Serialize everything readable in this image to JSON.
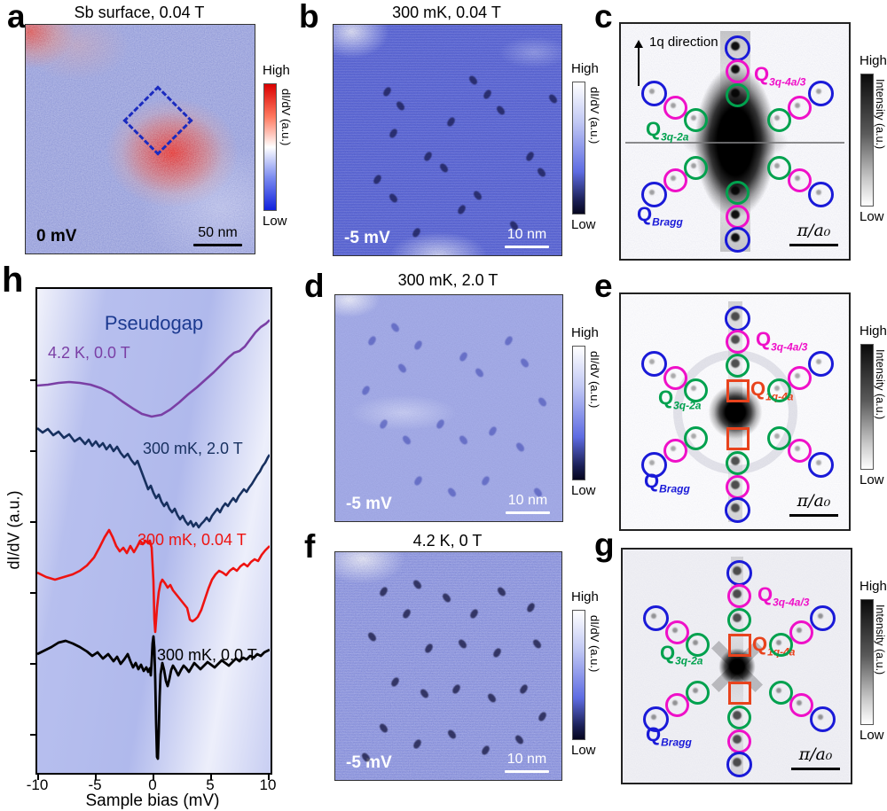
{
  "colors": {
    "q_bragg": "#1a1ad8",
    "q_3q_2a": "#00a14e",
    "q_3q_4a3": "#ef10c8",
    "q_1q_4a": "#e8431d",
    "pseudogap_text": "#1c3a90"
  },
  "panels": {
    "a": {
      "letter": "a",
      "title": "Sb surface, 0.04 T",
      "bias": "0 mV",
      "scalebar": "50 nm",
      "cb_high": "High",
      "cb_low": "Low",
      "cb_axis": "dI/dV (a.u.)"
    },
    "b": {
      "letter": "b",
      "title": "300 mK, 0.04 T",
      "bias": "-5 mV",
      "scalebar": "10 nm",
      "cb_high": "High",
      "cb_low": "Low",
      "cb_axis": "dI/dV (a.u.)"
    },
    "c": {
      "letter": "c",
      "direction_label": "1q direction",
      "scalebar": "π/a₀",
      "cb_high": "High",
      "cb_low": "Low",
      "cb_axis": "Intensity (a.u.)",
      "labels": {
        "q3q4a3": {
          "main": "Q",
          "sub": "3q-4a/3"
        },
        "q3q2a": {
          "main": "Q",
          "sub": "3q-2a"
        },
        "qbragg": {
          "main": "Q",
          "sub": "Bragg"
        }
      }
    },
    "d": {
      "letter": "d",
      "title": "300 mK, 2.0 T",
      "bias": "-5 mV",
      "scalebar": "10 nm",
      "cb_high": "High",
      "cb_low": "Low",
      "cb_axis": "dI/dV (a.u.)"
    },
    "e": {
      "letter": "e",
      "scalebar": "π/a₀",
      "cb_high": "High",
      "cb_low": "Low",
      "cb_axis": "Intensity (a.u.)",
      "labels": {
        "q3q4a3": {
          "main": "Q",
          "sub": "3q-4a/3"
        },
        "q3q2a": {
          "main": "Q",
          "sub": "3q-2a"
        },
        "q1q4a": {
          "main": "Q",
          "sub": "1q-4a"
        },
        "qbragg": {
          "main": "Q",
          "sub": "Bragg"
        }
      }
    },
    "f": {
      "letter": "f",
      "title": "4.2 K, 0 T",
      "bias": "-5 mV",
      "scalebar": "10 nm",
      "cb_high": "High",
      "cb_low": "Low",
      "cb_axis": "dI/dV (a.u.)"
    },
    "g": {
      "letter": "g",
      "scalebar": "π/a₀",
      "cb_high": "High",
      "cb_low": "Low",
      "cb_axis": "Intensity (a.u.)",
      "labels": {
        "q3q4a3": {
          "main": "Q",
          "sub": "3q-4a/3"
        },
        "q3q2a": {
          "main": "Q",
          "sub": "3q-2a"
        },
        "q1q4a": {
          "main": "Q",
          "sub": "1q-4a"
        },
        "qbragg": {
          "main": "Q",
          "sub": "Bragg"
        }
      }
    },
    "h": {
      "letter": "h",
      "annotation": "Pseudogap",
      "xlabel": "Sample bias (mV)",
      "ylabel": "dI/dV (a.u.)",
      "xticks": [
        "-10",
        "-5",
        "0",
        "5",
        "10"
      ],
      "curves": [
        {
          "label": "4.2 K, 0.0 T",
          "color": "#7a3fa5"
        },
        {
          "label": "300 mK, 2.0 T",
          "color": "#17305f"
        },
        {
          "label": "300 mK, 0.04 T",
          "color": "#ee1311"
        },
        {
          "label": "300 mK, 0.0 T",
          "color": "#000000"
        }
      ]
    }
  },
  "chart_data": {
    "type": "line",
    "xlabel": "Sample bias (mV)",
    "ylabel": "dI/dV (a.u.)",
    "xlim": [
      -10,
      10
    ],
    "xticks": [
      -10,
      -5,
      0,
      5,
      10
    ],
    "annotation": "Pseudogap",
    "legend_position": "on-curve",
    "series": [
      {
        "name": "4.2 K, 0.0 T",
        "color": "#7a3fa5",
        "description": "smooth shallow pseudogap dip centered near 0 mV, rising toward +10 mV"
      },
      {
        "name": "300 mK, 2.0 T",
        "color": "#17305f",
        "description": "noisy curve descending to a broad minimum near +1 mV then recovering"
      },
      {
        "name": "300 mK, 0.04 T",
        "color": "#ee1311",
        "description": "peak near -4 mV with sharp dip at 0 mV and broad minimum near +3 mV"
      },
      {
        "name": "300 mK, 0.0 T",
        "color": "#000000",
        "description": "deep sharp zero-bias dip at 0 mV with small side peaks"
      }
    ]
  }
}
